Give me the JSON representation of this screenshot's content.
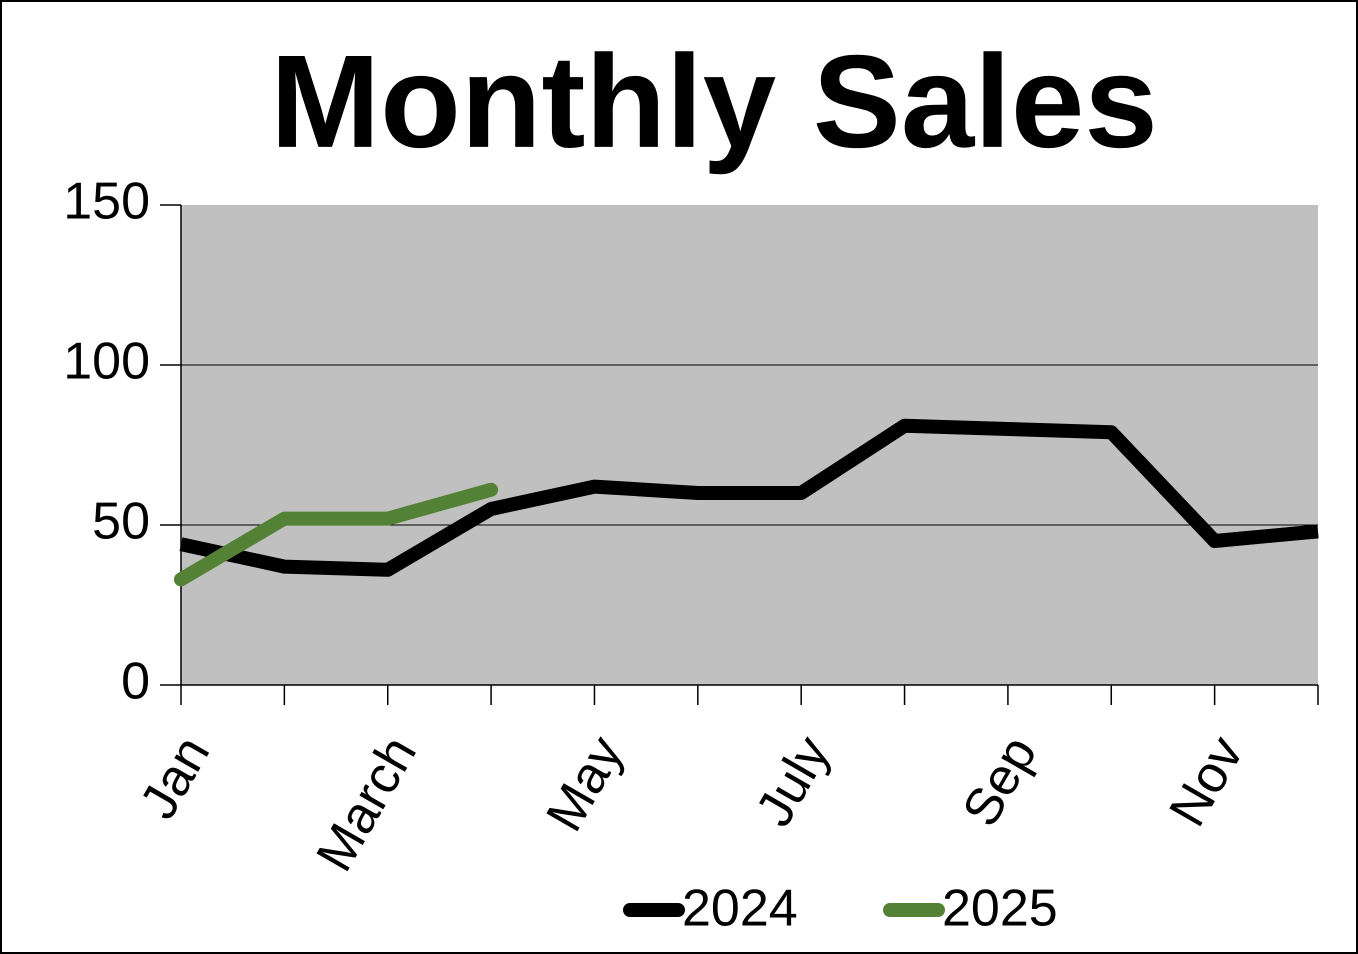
{
  "chart_data": {
    "type": "line",
    "title": "Monthly Sales",
    "categories": [
      "Jan",
      null,
      "March",
      null,
      "May",
      null,
      "July",
      null,
      "Sep",
      null,
      "Nov",
      null
    ],
    "series": [
      {
        "name": "2024",
        "color": "#000000",
        "values": [
          44,
          37,
          36,
          55,
          62,
          60,
          60,
          81,
          80,
          79,
          45,
          48
        ]
      },
      {
        "name": "2025",
        "color": "#538135",
        "values": [
          33,
          52,
          52,
          61,
          null,
          null,
          null,
          null,
          null,
          null,
          null,
          null
        ]
      }
    ],
    "ylim": [
      0,
      150
    ],
    "yticks": [
      0,
      50,
      100,
      150
    ],
    "grid": true,
    "plot_background": "#c0c0c0"
  }
}
